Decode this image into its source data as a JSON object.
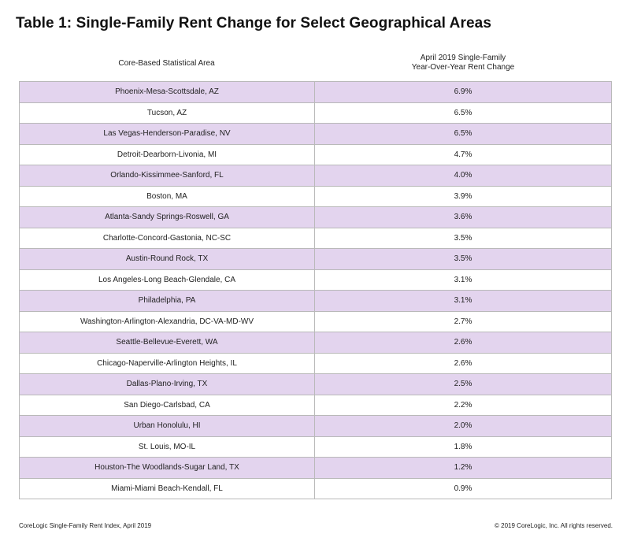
{
  "title": "Table 1: Single-Family Rent Change for Select Geographical Areas",
  "chart_data": {
    "type": "table",
    "title": "Table 1: Single-Family Rent Change for Select Geographical Areas",
    "columns": [
      "Core-Based Statistical Area",
      "April 2019 Single-Family",
      "Year-Over-Year Rent Change"
    ],
    "rows": [
      {
        "area": "Phoenix-Mesa-Scottsdale, AZ",
        "change": "6.9%"
      },
      {
        "area": "Tucson, AZ",
        "change": "6.5%"
      },
      {
        "area": "Las Vegas-Henderson-Paradise, NV",
        "change": "6.5%"
      },
      {
        "area": "Detroit-Dearborn-Livonia, MI",
        "change": "4.7%"
      },
      {
        "area": "Orlando-Kissimmee-Sanford, FL",
        "change": "4.0%"
      },
      {
        "area": "Boston, MA",
        "change": "3.9%"
      },
      {
        "area": "Atlanta-Sandy Springs-Roswell, GA",
        "change": "3.6%"
      },
      {
        "area": "Charlotte-Concord-Gastonia, NC-SC",
        "change": "3.5%"
      },
      {
        "area": "Austin-Round Rock, TX",
        "change": "3.5%"
      },
      {
        "area": "Los Angeles-Long Beach-Glendale, CA",
        "change": "3.1%"
      },
      {
        "area": "Philadelphia, PA",
        "change": "3.1%"
      },
      {
        "area": "Washington-Arlington-Alexandria, DC-VA-MD-WV",
        "change": "2.7%"
      },
      {
        "area": "Seattle-Bellevue-Everett, WA",
        "change": "2.6%"
      },
      {
        "area": "Chicago-Naperville-Arlington Heights, IL",
        "change": "2.6%"
      },
      {
        "area": "Dallas-Plano-Irving, TX",
        "change": "2.5%"
      },
      {
        "area": "San Diego-Carlsbad, CA",
        "change": "2.2%"
      },
      {
        "area": "Urban Honolulu, HI",
        "change": "2.0%"
      },
      {
        "area": "St. Louis, MO-IL",
        "change": "1.8%"
      },
      {
        "area": "Houston-The Woodlands-Sugar Land, TX",
        "change": "1.2%"
      },
      {
        "area": "Miami-Miami Beach-Kendall, FL",
        "change": "0.9%"
      }
    ],
    "stripe_colors": {
      "odd": "#e3d4ee",
      "even": "#ffffff"
    }
  },
  "footer": {
    "source": "CoreLogic Single-Family Rent Index, April 2019",
    "copyright": "© 2019 CoreLogic, Inc. All rights reserved."
  }
}
